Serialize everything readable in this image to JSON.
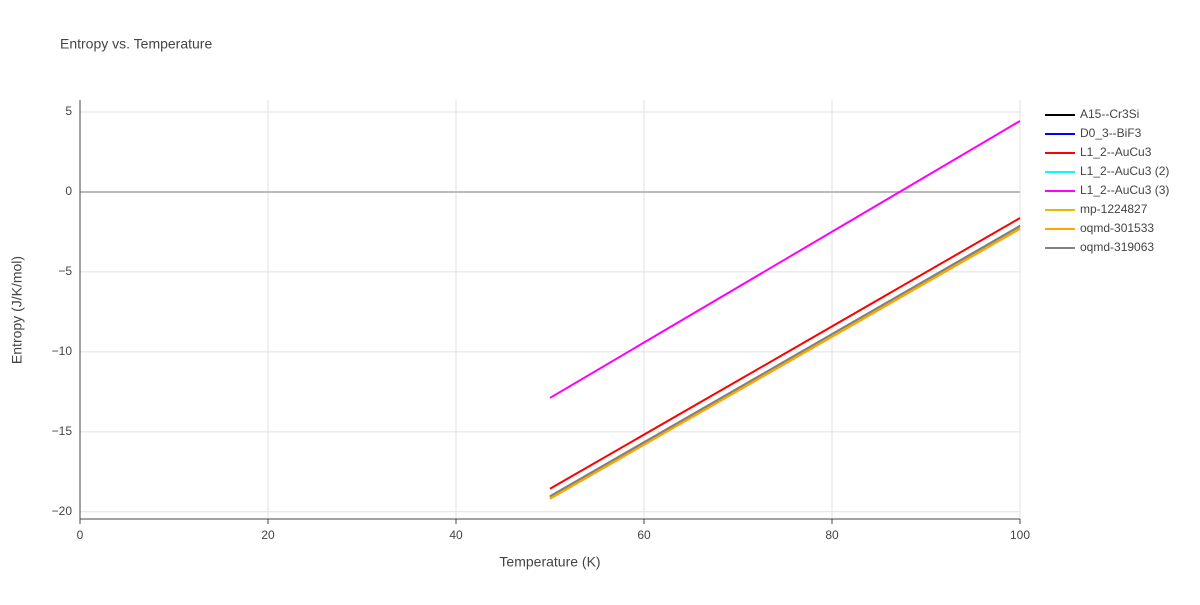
{
  "chart_data": {
    "type": "line",
    "title": "Entropy vs. Temperature",
    "x_label": "Temperature (K)",
    "y_label": "Entropy (J/K/mol)",
    "x": [
      50,
      75,
      100
    ],
    "series": [
      {
        "name": "A15--Cr3Si",
        "color": "#000000",
        "values": [
          -19.06,
          -10.6,
          -2.13
        ]
      },
      {
        "name": "D0_3--BiF3",
        "color": "#0000ff",
        "values": [
          -19.06,
          -10.6,
          -2.13
        ]
      },
      {
        "name": "L1_2--AuCu3",
        "color": "#ff0000",
        "values": [
          -18.56,
          -10.1,
          -1.63
        ]
      },
      {
        "name": "L1_2--AuCu3 (2)",
        "color": "#00ffff",
        "values": [
          -19.06,
          -10.6,
          -2.13
        ]
      },
      {
        "name": "L1_2--AuCu3 (3)",
        "color": "#ff00ff",
        "values": [
          -12.88,
          -4.22,
          4.44
        ]
      },
      {
        "name": "mp-1224827",
        "color": "#e6b800",
        "values": [
          -19.12,
          -10.7,
          -2.25
        ]
      },
      {
        "name": "oqmd-301533",
        "color": "#ffa500",
        "values": [
          -19.19,
          -10.75,
          -2.31
        ]
      },
      {
        "name": "oqmd-319063",
        "color": "#808080",
        "values": [
          -19.03,
          -10.58,
          -2.13
        ]
      }
    ],
    "xlim": [
      0,
      100
    ],
    "xticks": [
      0,
      20,
      40,
      60,
      80,
      100
    ],
    "ylim": [
      -20.45,
      5.75
    ],
    "yticks": [
      {
        "value": -20,
        "label": "−20"
      },
      {
        "value": -15,
        "label": "−15"
      },
      {
        "value": -10,
        "label": "−10"
      },
      {
        "value": -5,
        "label": "−5"
      },
      0,
      5
    ],
    "grid": true
  }
}
